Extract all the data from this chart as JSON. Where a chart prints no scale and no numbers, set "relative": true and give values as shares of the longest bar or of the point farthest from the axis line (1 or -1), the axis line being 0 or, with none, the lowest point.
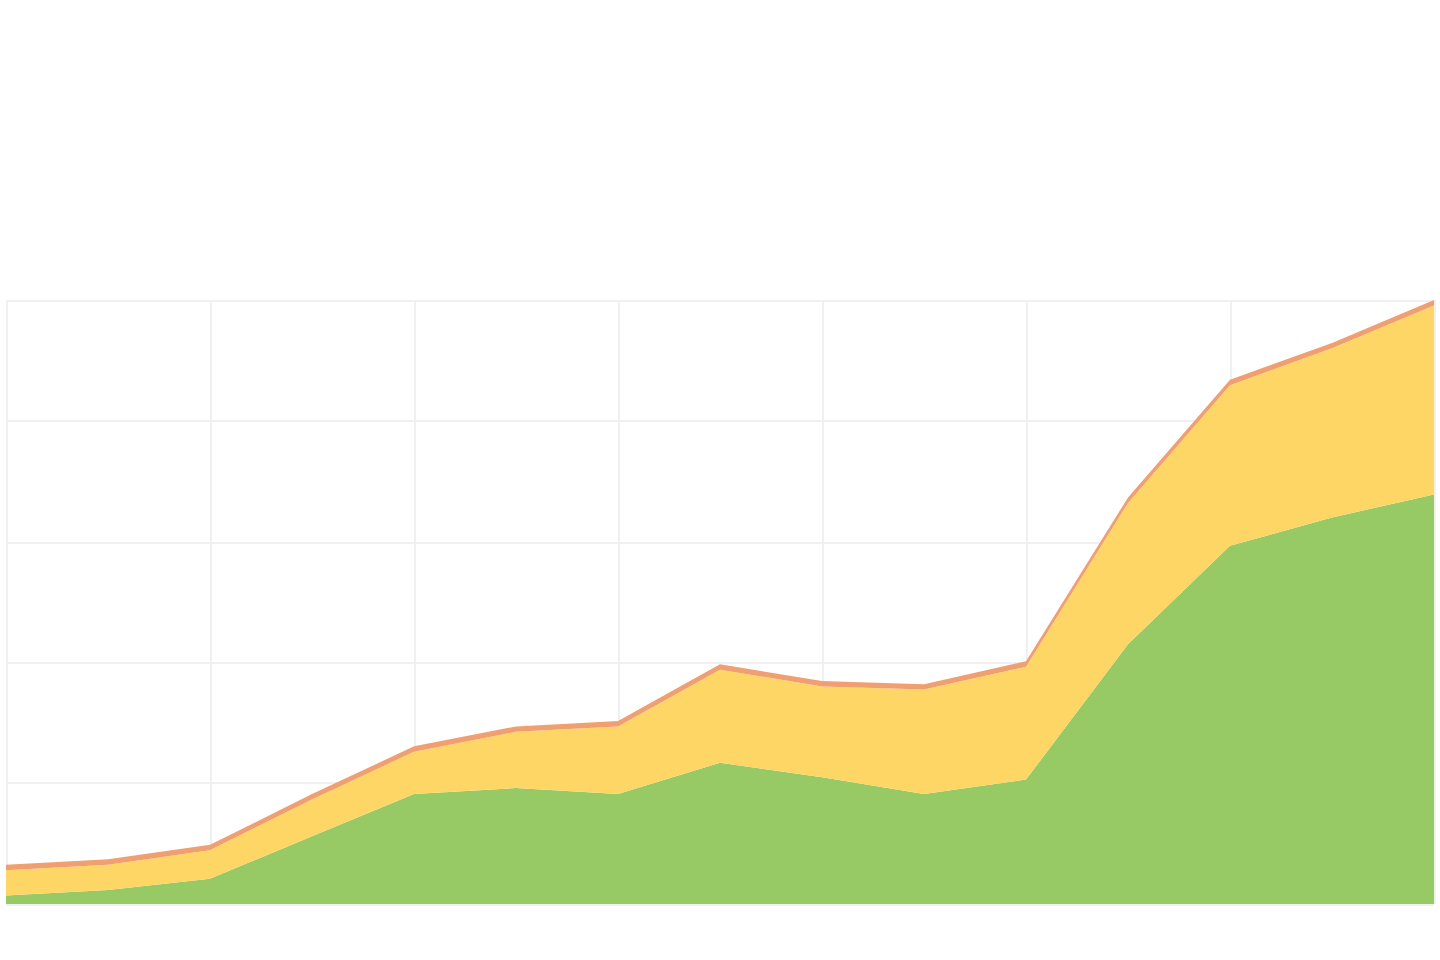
{
  "chart_data": {
    "type": "area",
    "relative": true,
    "stacked": true,
    "grid": true,
    "categories": [
      null,
      null,
      null,
      null,
      null,
      null,
      null,
      null,
      null,
      null,
      null,
      null,
      null,
      null,
      null
    ],
    "series": [
      {
        "color": "#97c964",
        "values": [
          0.014,
          0.023,
          0.042,
          0.112,
          0.182,
          0.192,
          0.182,
          0.234,
          0.21,
          0.182,
          0.206,
          0.43,
          0.593,
          0.64,
          0.678
        ]
      },
      {
        "color": "#fdd666",
        "values": [
          0.042,
          0.042,
          0.047,
          0.061,
          0.07,
          0.093,
          0.112,
          0.154,
          0.15,
          0.173,
          0.187,
          0.234,
          0.266,
          0.28,
          0.313
        ]
      },
      {
        "color": "#f0a070",
        "values": [
          0.009,
          0.009,
          0.009,
          0.009,
          0.009,
          0.009,
          0.009,
          0.009,
          0.009,
          0.009,
          0.009,
          0.009,
          0.009,
          0.009,
          0.009
        ]
      }
    ]
  }
}
